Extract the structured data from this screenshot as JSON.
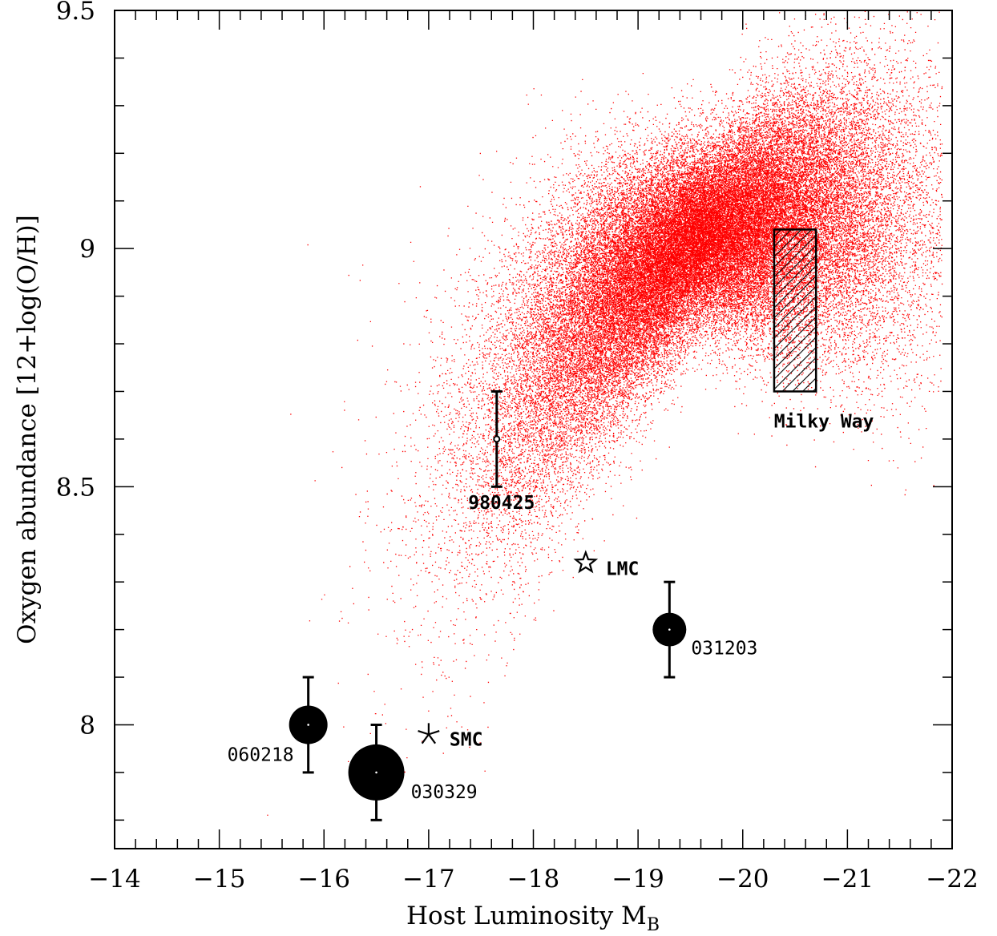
{
  "chart_data": {
    "type": "scatter",
    "title": "",
    "xlabel": "Host Luminosity M",
    "xlabel_subscript": "B",
    "ylabel": "Oxygen abundance [12+log(O/H)]",
    "xlim": [
      -14,
      -22
    ],
    "ylim": [
      7.74,
      9.5
    ],
    "x_ticks": [
      "−14",
      "−15",
      "−16",
      "−17",
      "−18",
      "−19",
      "−20",
      "−21",
      "−22"
    ],
    "y_ticks": [
      "8",
      "8.5",
      "9",
      "9.5"
    ],
    "background_population": {
      "color": "#ff0000",
      "description_shown": false,
      "n_points": 60000,
      "trend_x": [
        -14.5,
        -15.5,
        -16.5,
        -17.5,
        -18.5,
        -19.5,
        -20.5,
        -21.5
      ],
      "trend_y": [
        8.05,
        8.2,
        8.38,
        8.6,
        8.85,
        9.02,
        9.08,
        9.08
      ]
    },
    "grb_hosts": [
      {
        "label": "060218",
        "x": -15.85,
        "y": 8.0,
        "yerr": 0.1,
        "marker": "filled-circle",
        "size": "medium"
      },
      {
        "label": "030329",
        "x": -16.5,
        "y": 7.9,
        "yerr": 0.1,
        "marker": "filled-circle",
        "size": "large"
      },
      {
        "label": "031203",
        "x": -19.3,
        "y": 8.2,
        "yerr": 0.1,
        "marker": "filled-circle",
        "size": "small"
      },
      {
        "label": "980425",
        "x": -17.65,
        "y": 8.6,
        "yerr": 0.1,
        "marker": "open-circle",
        "size": "tiny"
      }
    ],
    "reference_galaxies": [
      {
        "label": "LMC",
        "x": -18.5,
        "y": 8.34,
        "marker": "open-star"
      },
      {
        "label": "SMC",
        "x": -17.0,
        "y": 7.98,
        "marker": "asterisk"
      }
    ],
    "milky_way": {
      "label": "Milky Way",
      "x_range": [
        -20.3,
        -20.7
      ],
      "y_range": [
        8.7,
        9.04
      ],
      "fill": "hatched"
    }
  }
}
